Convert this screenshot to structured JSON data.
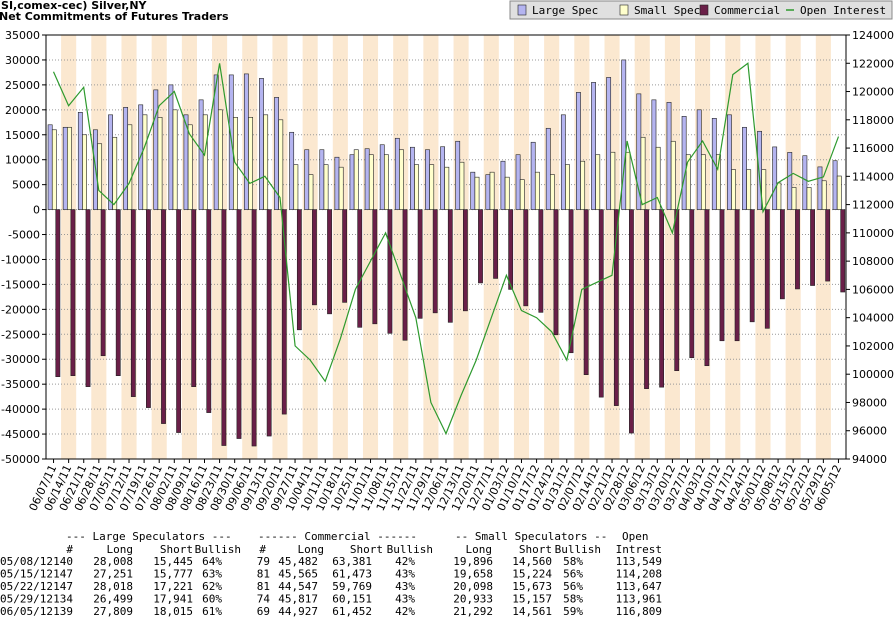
{
  "chart_data": {
    "type": "bar",
    "title": "(SI,comex-cec) Silver,NY",
    "subtitle": "Net Commitments of Futures Traders",
    "categories": [
      "06/07/11",
      "06/14/11",
      "06/21/11",
      "06/28/11",
      "07/05/11",
      "07/12/11",
      "07/19/11",
      "07/26/11",
      "08/02/11",
      "08/09/11",
      "08/16/11",
      "08/23/11",
      "08/30/11",
      "09/06/11",
      "09/13/11",
      "09/20/11",
      "09/27/11",
      "10/04/11",
      "10/11/11",
      "10/18/11",
      "10/25/11",
      "11/01/11",
      "11/08/11",
      "11/15/11",
      "11/22/11",
      "11/29/11",
      "12/06/11",
      "12/13/11",
      "12/20/11",
      "12/27/11",
      "01/03/12",
      "01/10/12",
      "01/17/12",
      "01/24/12",
      "01/31/12",
      "02/07/12",
      "02/14/12",
      "02/21/12",
      "02/28/12",
      "03/06/12",
      "03/13/12",
      "03/20/12",
      "03/27/12",
      "04/03/12",
      "04/10/12",
      "04/17/12",
      "04/24/12",
      "05/01/12",
      "05/08/12",
      "05/15/12",
      "05/22/12",
      "05/29/12",
      "06/05/12"
    ],
    "series": [
      {
        "name": "Large Spec",
        "type": "bar",
        "color": "#b4b4f0",
        "values": [
          17000,
          16500,
          19500,
          16000,
          19000,
          20500,
          21000,
          24000,
          25000,
          19000,
          22000,
          27000,
          27000,
          27200,
          26300,
          22500,
          15500,
          12000,
          12000,
          10500,
          11000,
          12200,
          13000,
          14300,
          12500,
          12000,
          12600,
          13700,
          7500,
          7000,
          9700,
          11000,
          13500,
          16300,
          19000,
          23500,
          25500,
          26500,
          30000,
          23200,
          22000,
          21500,
          18700,
          20000,
          18300,
          19000,
          16500,
          15700,
          12563,
          11474,
          10797,
          8558,
          9794
        ]
      },
      {
        "name": "Small Spec",
        "type": "bar",
        "color": "#ffffcc",
        "values": [
          16000,
          16500,
          15000,
          13200,
          14500,
          17000,
          19000,
          18500,
          20000,
          17000,
          19000,
          20000,
          18500,
          18500,
          19000,
          18000,
          9000,
          7000,
          9000,
          8500,
          12000,
          11000,
          11000,
          12000,
          9000,
          9000,
          8500,
          9500,
          6500,
          7500,
          6500,
          6000,
          7500,
          7000,
          9000,
          9700,
          11000,
          11500,
          11500,
          14500,
          12500,
          13700,
          11000,
          11000,
          11000,
          8000,
          8000,
          8000,
          5336,
          4434,
          4425,
          5776,
          6731
        ]
      },
      {
        "name": "Commercial",
        "type": "bar",
        "color": "#6a1f48",
        "values": [
          -33500,
          -33300,
          -35500,
          -29300,
          -33300,
          -37500,
          -39700,
          -42900,
          -44700,
          -35500,
          -40700,
          -47300,
          -45900,
          -47400,
          -45400,
          -41000,
          -24100,
          -19100,
          -20900,
          -18600,
          -23600,
          -22900,
          -24800,
          -26200,
          -21800,
          -20700,
          -22600,
          -20300,
          -14700,
          -13800,
          -16000,
          -19300,
          -20600,
          -25100,
          -28700,
          -33100,
          -37600,
          -39300,
          -44800,
          -35900,
          -35600,
          -32300,
          -29700,
          -31300,
          -26300,
          -26300,
          -22500,
          -23800,
          -17899,
          -15908,
          -15222,
          -14334,
          -16525
        ]
      },
      {
        "name": "Open Interest",
        "type": "line",
        "axis": "y2",
        "color": "#2e9a2e",
        "values": [
          121400,
          119000,
          120300,
          113000,
          112000,
          113500,
          116000,
          119000,
          120000,
          117000,
          115500,
          122000,
          115000,
          113500,
          114000,
          112500,
          102000,
          101000,
          99500,
          102500,
          106000,
          108000,
          110000,
          107000,
          104000,
          98000,
          95800,
          98500,
          101000,
          104000,
          107000,
          104500,
          104000,
          103000,
          101000,
          106000,
          106500,
          107000,
          116500,
          112000,
          112500,
          110000,
          115000,
          116500,
          114500,
          121200,
          122000,
          111500,
          113549,
          114208,
          113647,
          113961,
          116809
        ]
      }
    ],
    "ylim": [
      -50000,
      35000
    ],
    "yticks": [
      -50000,
      -45000,
      -40000,
      -35000,
      -30000,
      -25000,
      -20000,
      -15000,
      -10000,
      -5000,
      0,
      5000,
      10000,
      15000,
      20000,
      25000,
      30000,
      35000
    ],
    "y2lim": [
      94000,
      124000
    ],
    "y2ticks": [
      94000,
      96000,
      98000,
      100000,
      102000,
      104000,
      106000,
      108000,
      110000,
      112000,
      114000,
      116000,
      118000,
      120000,
      122000,
      124000
    ],
    "grid": true,
    "legend": "top-right"
  },
  "table": {
    "header_groups": [
      "--- Large Speculators ---",
      "------ Commercial ------",
      "-- Small Speculators --",
      "Open"
    ],
    "columns": [
      "#",
      "Long",
      "Short",
      "Bullish",
      "#",
      "Long",
      "Short",
      "Bullish",
      "Long",
      "Short",
      "Bullish",
      "Intrest"
    ],
    "rows": [
      [
        "05/08/12",
        "140",
        "28,008",
        "15,445",
        "64%",
        "79",
        "45,482",
        "63,381",
        "42%",
        "19,896",
        "14,560",
        "58%",
        "113,549"
      ],
      [
        "05/15/12",
        "147",
        "27,251",
        "15,777",
        "63%",
        "81",
        "45,565",
        "61,473",
        "43%",
        "19,658",
        "15,224",
        "56%",
        "114,208"
      ],
      [
        "05/22/12",
        "147",
        "28,018",
        "17,221",
        "62%",
        "81",
        "44,547",
        "59,769",
        "43%",
        "20,098",
        "15,673",
        "56%",
        "113,647"
      ],
      [
        "05/29/12",
        "134",
        "26,499",
        "17,941",
        "60%",
        "74",
        "45,817",
        "60,151",
        "43%",
        "20,933",
        "15,157",
        "58%",
        "113,961"
      ],
      [
        "06/05/12",
        "139",
        "27,809",
        "18,015",
        "61%",
        "69",
        "44,927",
        "61,452",
        "42%",
        "21,292",
        "14,561",
        "59%",
        "116,809"
      ]
    ]
  }
}
